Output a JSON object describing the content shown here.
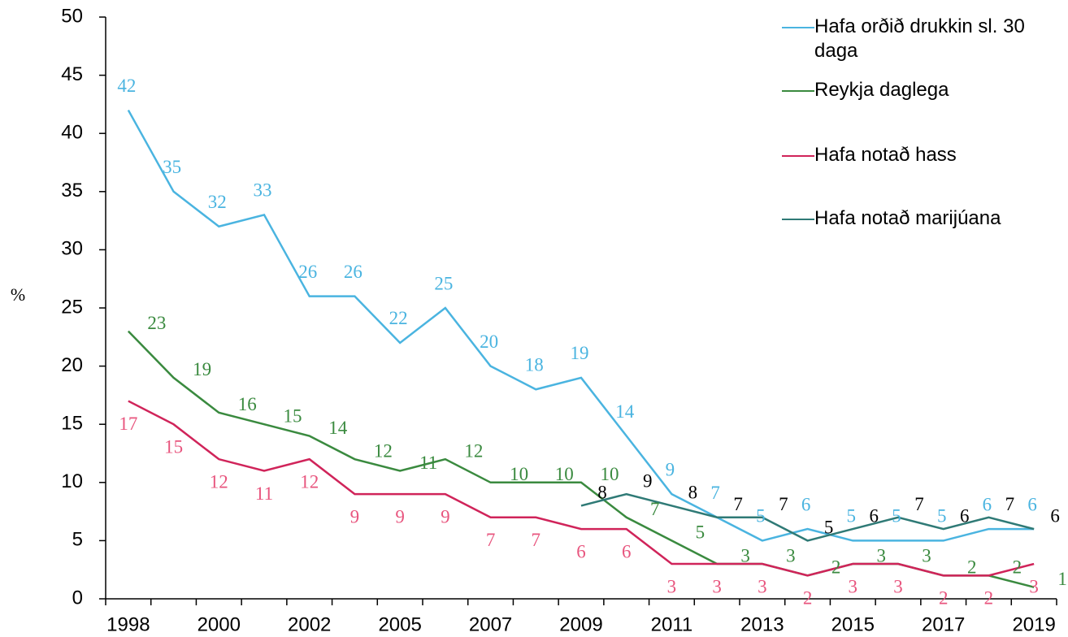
{
  "chart_data": {
    "type": "line",
    "ylabel": "%",
    "categories": [
      "1998",
      null,
      "2000",
      null,
      "2002",
      null,
      "2005",
      null,
      "2007",
      null,
      "2009",
      null,
      "2011",
      null,
      "2013",
      null,
      "2015",
      null,
      "2017",
      null,
      "2019"
    ],
    "series": [
      {
        "name": "Hafa orðið drukkin sl. 30 daga",
        "color": "#4ab4e0",
        "label_color": "#4ab4e0",
        "values": [
          42,
          35,
          32,
          33,
          26,
          26,
          22,
          25,
          20,
          18,
          19,
          14,
          9,
          7,
          5,
          6,
          5,
          5,
          5,
          6,
          6
        ]
      },
      {
        "name": "Reykja daglega",
        "color": "#3a8a3f",
        "label_color": "#3a8a3f",
        "values": [
          23,
          19,
          16,
          15,
          14,
          12,
          11,
          12,
          10,
          10,
          10,
          7,
          5,
          3,
          3,
          2,
          3,
          3,
          2,
          2,
          1
        ]
      },
      {
        "name": "Hafa notað hass",
        "color": "#d0245a",
        "label_color": "#e8557e",
        "values": [
          17,
          15,
          12,
          11,
          12,
          9,
          9,
          9,
          7,
          7,
          6,
          6,
          3,
          3,
          3,
          2,
          3,
          3,
          2,
          2,
          3
        ]
      },
      {
        "name": "Hafa notað marijúana",
        "color": "#2f7a76",
        "label_color": "#000000",
        "values": [
          null,
          null,
          null,
          null,
          null,
          null,
          null,
          null,
          null,
          null,
          8,
          9,
          8,
          7,
          7,
          5,
          6,
          7,
          6,
          7,
          6
        ]
      }
    ],
    "ylim": [
      0,
      50
    ],
    "yticks": [
      0,
      5,
      10,
      15,
      20,
      25,
      30,
      35,
      40,
      45,
      50
    ],
    "legend": "right"
  }
}
